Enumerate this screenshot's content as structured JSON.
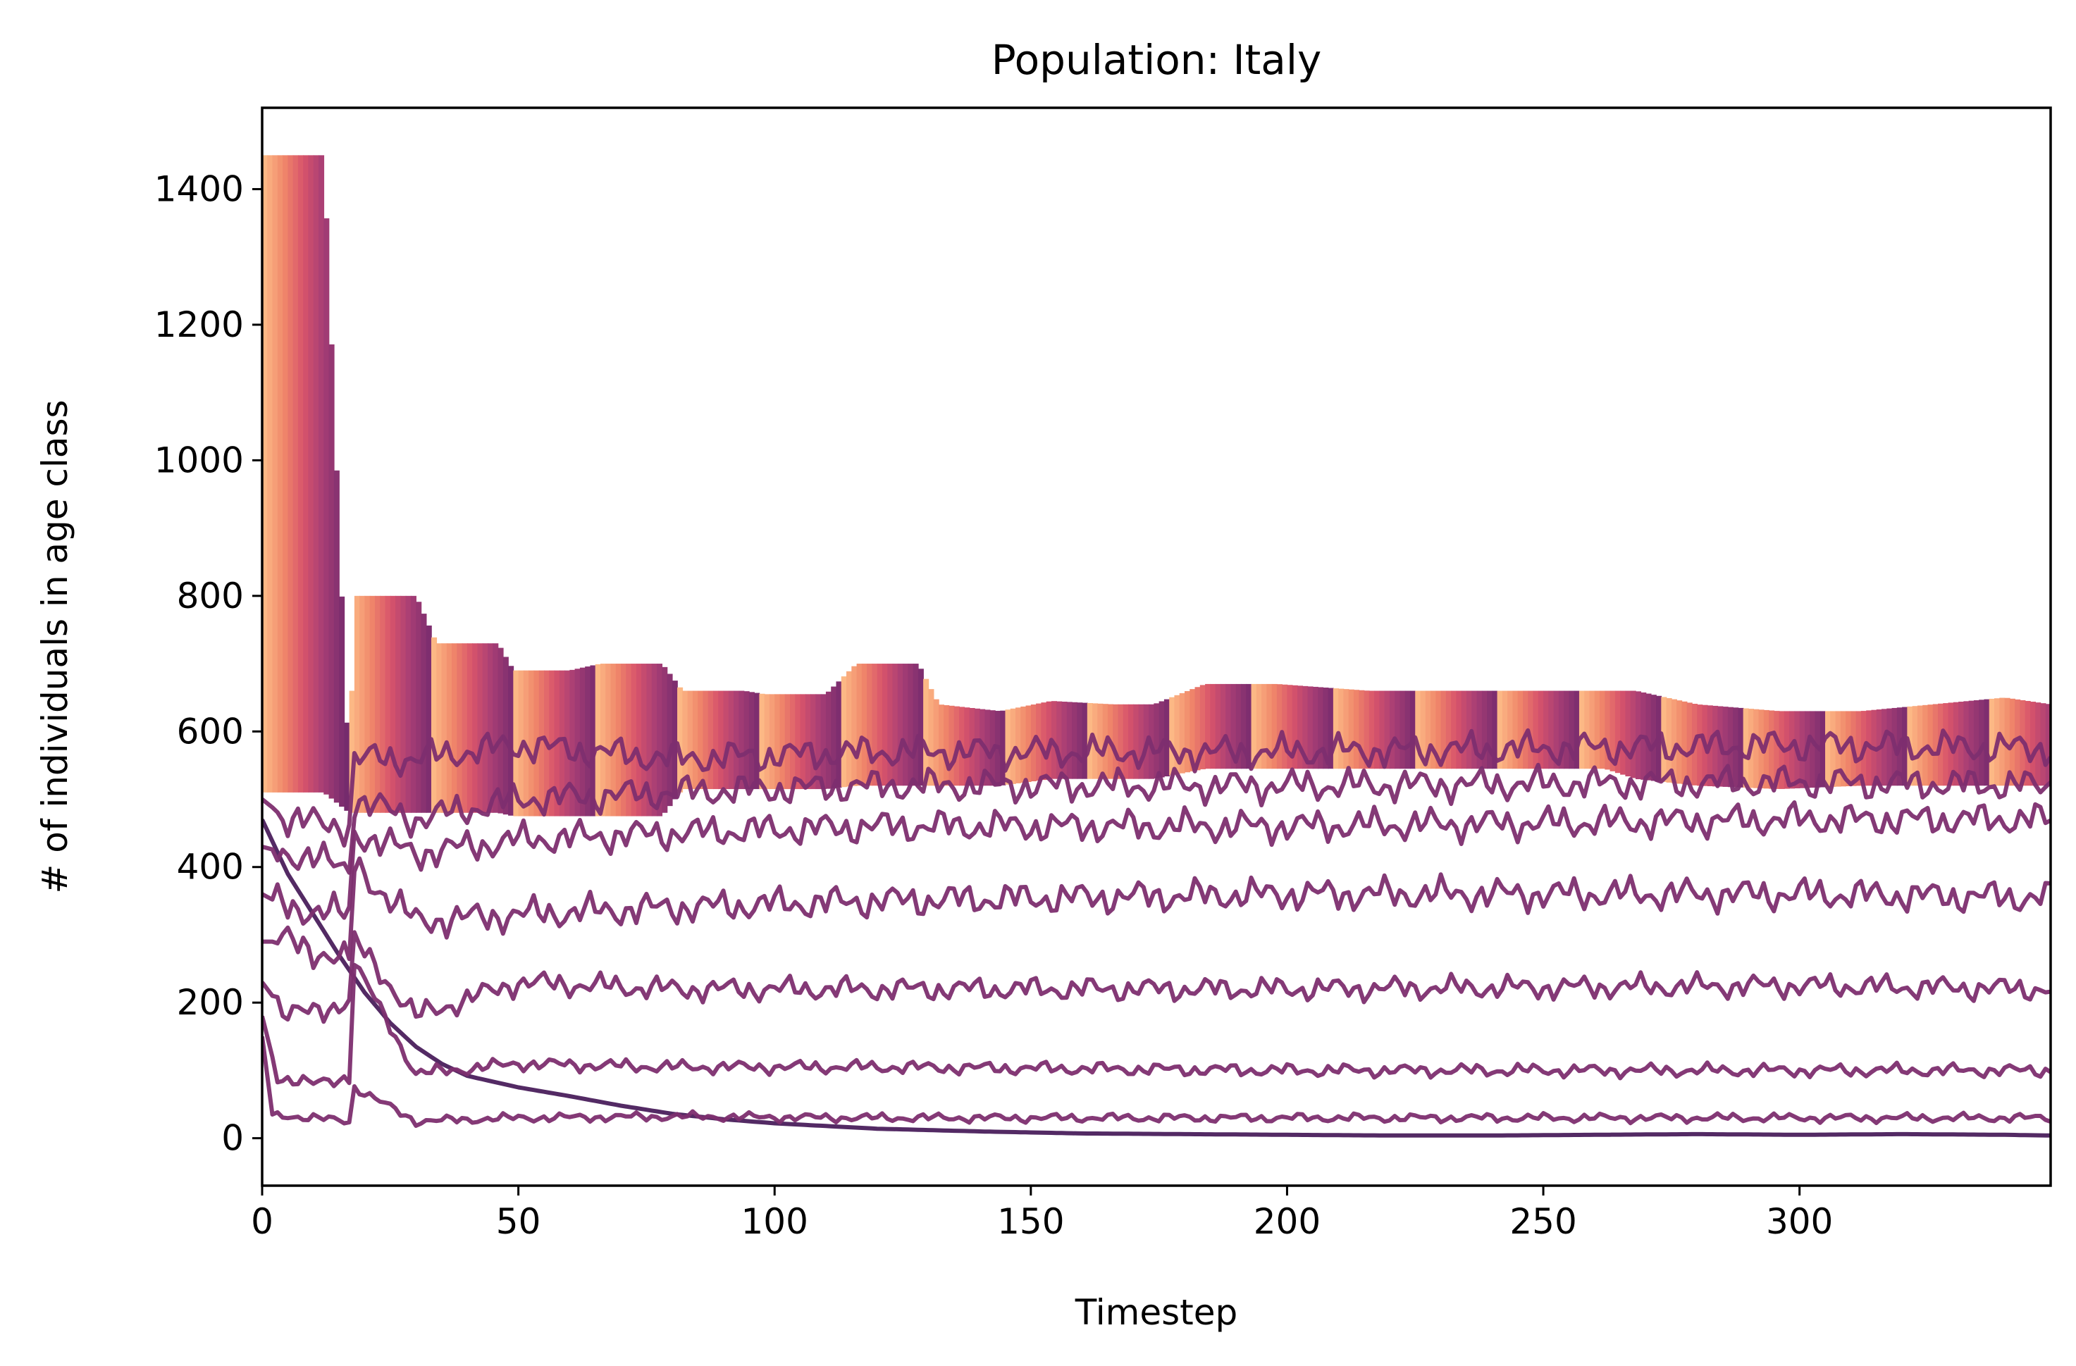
{
  "chart_data": {
    "type": "line",
    "title": "Population: Italy",
    "xlabel": "Timestep",
    "ylabel": "# of individuals in age class",
    "xlim": [
      0,
      349
    ],
    "ylim": [
      -70,
      1520
    ],
    "xticks": [
      0,
      50,
      100,
      150,
      200,
      250,
      300
    ],
    "yticks": [
      0,
      200,
      400,
      600,
      800,
      1000,
      1200,
      1400
    ],
    "grid": false,
    "legend": "none",
    "colormap": [
      "#fcb885",
      "#f0876a",
      "#d8546b",
      "#a83e75",
      "#7d2e6f",
      "#5b2365"
    ],
    "line_color": "#7d2e6f",
    "dark_line_color": "#4a1f5c",
    "band_keys": [
      [
        0,
        1450,
        510
      ],
      [
        12,
        1450,
        510
      ],
      [
        17,
        520,
        480
      ],
      [
        18,
        800,
        480
      ],
      [
        30,
        800,
        480
      ],
      [
        34,
        730,
        480
      ],
      [
        46,
        730,
        480
      ],
      [
        49,
        690,
        475
      ],
      [
        60,
        690,
        475
      ],
      [
        66,
        700,
        475
      ],
      [
        78,
        700,
        475
      ],
      [
        82,
        660,
        515
      ],
      [
        94,
        660,
        515
      ],
      [
        98,
        655,
        515
      ],
      [
        110,
        655,
        515
      ],
      [
        116,
        700,
        520
      ],
      [
        128,
        700,
        520
      ],
      [
        132,
        640,
        520
      ],
      [
        144,
        630,
        520
      ],
      [
        154,
        645,
        530
      ],
      [
        166,
        640,
        530
      ],
      [
        174,
        640,
        530
      ],
      [
        184,
        670,
        545
      ],
      [
        198,
        670,
        545
      ],
      [
        216,
        660,
        545
      ],
      [
        232,
        660,
        545
      ],
      [
        248,
        660,
        545
      ],
      [
        262,
        660,
        545
      ],
      [
        268,
        660,
        530
      ],
      [
        280,
        640,
        520
      ],
      [
        296,
        630,
        515
      ],
      [
        312,
        630,
        520
      ],
      [
        326,
        640,
        520
      ],
      [
        340,
        650,
        520
      ],
      [
        349,
        640,
        520
      ]
    ],
    "series": [
      {
        "line": "decline",
        "x": [
          0,
          5,
          10,
          15,
          20,
          25,
          30,
          35,
          40,
          50,
          60,
          70,
          80,
          90,
          100,
          120,
          140,
          160,
          180,
          200,
          220,
          240,
          260,
          280,
          300,
          320,
          340,
          349
        ],
        "values": [
          470,
          390,
          330,
          270,
          215,
          170,
          135,
          110,
          92,
          75,
          62,
          48,
          36,
          28,
          22,
          14,
          10,
          7,
          6,
          5,
          4,
          4,
          5,
          6,
          5,
          6,
          5,
          4
        ]
      },
      {
        "line": "noisy",
        "x": [
          0,
          2,
          17,
          18,
          30,
          50,
          80,
          120,
          200,
          300,
          349
        ],
        "values": [
          150,
          35,
          25,
          75,
          25,
          30,
          32,
          30,
          30,
          30,
          30
        ],
        "noise": 8
      },
      {
        "line": "noisy",
        "x": [
          0,
          3,
          10,
          17,
          18,
          30,
          50,
          80,
          120,
          200,
          300,
          349
        ],
        "values": [
          180,
          90,
          80,
          90,
          260,
          95,
          110,
          105,
          105,
          100,
          100,
          100
        ],
        "noise": 12
      },
      {
        "line": "noisy",
        "x": [
          0,
          5,
          17,
          18,
          30,
          50,
          80,
          120,
          200,
          300,
          349
        ],
        "values": [
          230,
          180,
          200,
          290,
          180,
          230,
          220,
          220,
          220,
          225,
          220
        ],
        "noise": 22
      },
      {
        "line": "noisy",
        "x": [
          0,
          5,
          17,
          18,
          30,
          50,
          80,
          120,
          200,
          300,
          349
        ],
        "values": [
          290,
          290,
          260,
          400,
          320,
          330,
          340,
          350,
          360,
          360,
          355
        ],
        "noise": 30
      },
      {
        "line": "noisy",
        "x": [
          0,
          5,
          17,
          18,
          30,
          50,
          80,
          120,
          200,
          300,
          349
        ],
        "values": [
          360,
          340,
          330,
          450,
          420,
          440,
          450,
          460,
          460,
          470,
          470
        ],
        "noise": 30
      },
      {
        "line": "noisy",
        "x": [
          0,
          5,
          17,
          18,
          30,
          50,
          80,
          120,
          200,
          300,
          349
        ],
        "values": [
          430,
          420,
          400,
          500,
          470,
          500,
          510,
          520,
          520,
          525,
          520
        ],
        "noise": 30
      },
      {
        "line": "noisy",
        "x": [
          0,
          5,
          17,
          18,
          30,
          50,
          80,
          120,
          200,
          300,
          349
        ],
        "values": [
          500,
          470,
          460,
          560,
          560,
          580,
          560,
          570,
          570,
          580,
          575
        ],
        "noise": 30
      }
    ]
  }
}
